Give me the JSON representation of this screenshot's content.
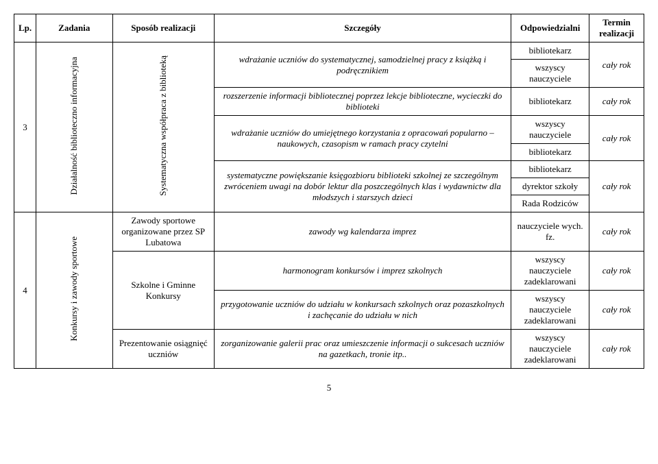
{
  "headers": {
    "lp": "Lp.",
    "zadania": "Zadania",
    "sposob": "Sposób realizacji",
    "szczegoly": "Szczegóły",
    "odp": "Odpowiedzialni",
    "termin": "Termin realizacji"
  },
  "row3": {
    "lp": "3",
    "zadania": "Działalność biblioteczno informacyjna",
    "sposob": "Systematyczna współpraca z biblioteką",
    "szcz1": "wdrażanie uczniów do systematycznej, samodzielnej pracy z książką i podręcznikiem",
    "odp1a": "bibliotekarz",
    "odp1b": "wszyscy nauczyciele",
    "term1": "cały rok",
    "szcz2": "rozszerzenie informacji bibliotecznej poprzez lekcje biblioteczne, wycieczki do biblioteki",
    "odp2": "bibliotekarz",
    "term2": "cały rok",
    "szcz3": "wdrażanie uczniów do umiejętnego korzystania z opracowań popularno – naukowych, czasopism w ramach pracy czytelni",
    "odp3a": "wszyscy nauczyciele",
    "odp3b": "bibliotekarz",
    "term3": "cały rok",
    "szcz4": "systematyczne powiększanie księgozbioru biblioteki szkolnej ze szczególnym zwróceniem uwagi na dobór lektur dla poszczególnych klas i wydawnictw dla młodszych i starszych dzieci",
    "odp4a": "bibliotekarz",
    "odp4b": "dyrektor szkoły",
    "odp4c": "Rada Rodziców",
    "term4": "cały rok"
  },
  "row4": {
    "lp": "4",
    "zadania": "Konkursy i zawody sportowe",
    "sposob1": "Zawody sportowe organizowane przez SP Lubatowa",
    "szcz1": "zawody wg kalendarza imprez",
    "odp1": "nauczyciele wych. fz.",
    "term1": "cały rok",
    "sposob2": "Szkolne i Gminne Konkursy",
    "szcz2": "harmonogram konkursów i imprez szkolnych",
    "odp2": "wszyscy nauczyciele zadeklarowani",
    "term2": "cały rok",
    "szcz3": "przygotowanie uczniów do udziału w konkursach szkolnych oraz pozaszkolnych i zachęcanie do udziału w nich",
    "odp3": "wszyscy nauczyciele zadeklarowani",
    "term3": "cały rok",
    "sposob3": "Prezentowanie osiągnięć uczniów",
    "szcz4": "zorganizowanie galerii prac oraz umieszczenie informacji o sukcesach uczniów na gazetkach, tronie itp..",
    "odp4": "wszyscy nauczyciele zadeklarowani",
    "term4": "cały rok"
  },
  "page": "5"
}
